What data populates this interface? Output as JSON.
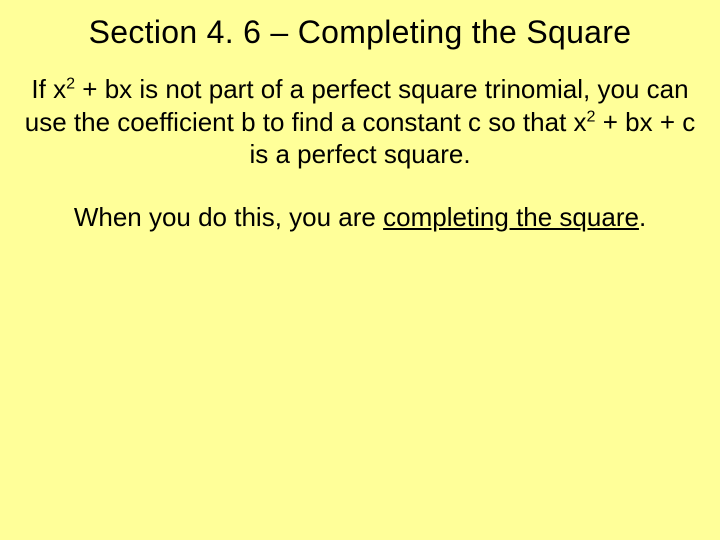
{
  "slide": {
    "background_color": "#ffff99",
    "text_color": "#000000",
    "title": {
      "text": "Section 4. 6 – Completing the Square",
      "fontsize": 32
    },
    "paragraph1": {
      "seg1": "If x",
      "sup1": "2",
      "seg2": " + bx is not part of a perfect square trinomial, you can use the coefficient b to find a constant c so that x",
      "sup2": "2",
      "seg3": " + bx + c is a perfect square.",
      "fontsize": 26
    },
    "paragraph2": {
      "seg1": "When you do this, you are ",
      "underline_seg": "completing the square",
      "seg2": ".",
      "fontsize": 26
    }
  }
}
